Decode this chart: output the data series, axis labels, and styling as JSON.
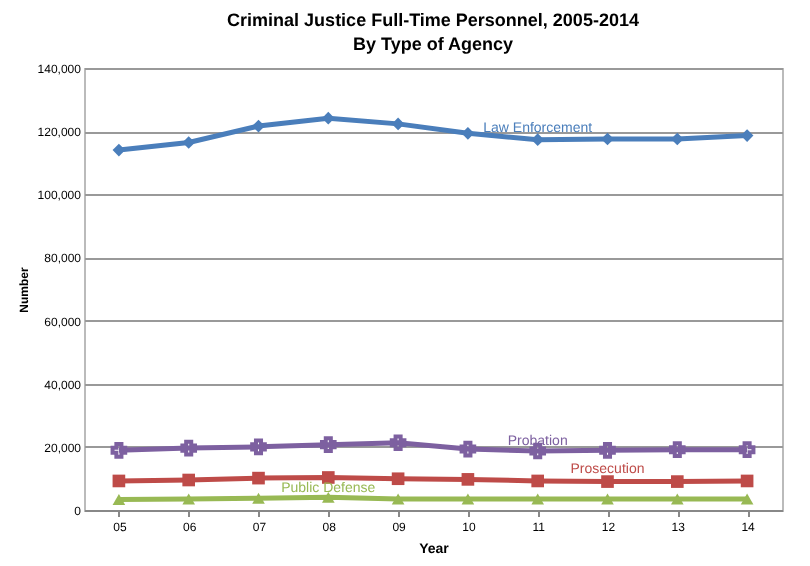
{
  "chart_data": {
    "type": "line",
    "title": "Criminal Justice Full-Time Personnel, 2005-2014",
    "subtitle": "By Type of Agency",
    "xlabel": "Year",
    "ylabel": "Number",
    "categories": [
      "05",
      "06",
      "07",
      "08",
      "09",
      "10",
      "11",
      "12",
      "13",
      "14"
    ],
    "ylim": [
      0,
      140000
    ],
    "yticks": [
      {
        "value": 0,
        "label": "0"
      },
      {
        "value": 20000,
        "label": "20,000"
      },
      {
        "value": 40000,
        "label": "40,000"
      },
      {
        "value": 60000,
        "label": "60,000"
      },
      {
        "value": 80000,
        "label": "80,000"
      },
      {
        "value": 100000,
        "label": "100,000"
      },
      {
        "value": 120000,
        "label": "120,000"
      },
      {
        "value": 140000,
        "label": "140,000"
      }
    ],
    "grid": "y",
    "annotations": [
      {
        "text": "Law Enforcement",
        "x": "11",
        "y": 121000
      },
      {
        "text": "Probation",
        "x": "11",
        "y": 22000
      },
      {
        "text": "Prosecution",
        "x": "12",
        "y": 13000
      },
      {
        "text": "Public Defense",
        "x": "08",
        "y": 7000
      }
    ],
    "series": [
      {
        "color": "#4a7ebb",
        "marker": "diamond",
        "values": [
          114000,
          116400,
          121600,
          124100,
          122300,
          119300,
          117300,
          117500,
          117500,
          118600
        ]
      },
      {
        "color": "#7d60a0",
        "marker": "cross",
        "values": [
          18900,
          19600,
          20000,
          20700,
          21300,
          19300,
          18700,
          18900,
          19100,
          19100
        ]
      },
      {
        "color": "#be4b48",
        "marker": "square",
        "values": [
          9200,
          9500,
          10100,
          10300,
          9900,
          9700,
          9200,
          9000,
          9000,
          9200
        ]
      },
      {
        "color": "#98b954",
        "marker": "triangle",
        "values": [
          3300,
          3500,
          3700,
          4000,
          3500,
          3500,
          3500,
          3500,
          3500,
          3500
        ]
      }
    ]
  }
}
